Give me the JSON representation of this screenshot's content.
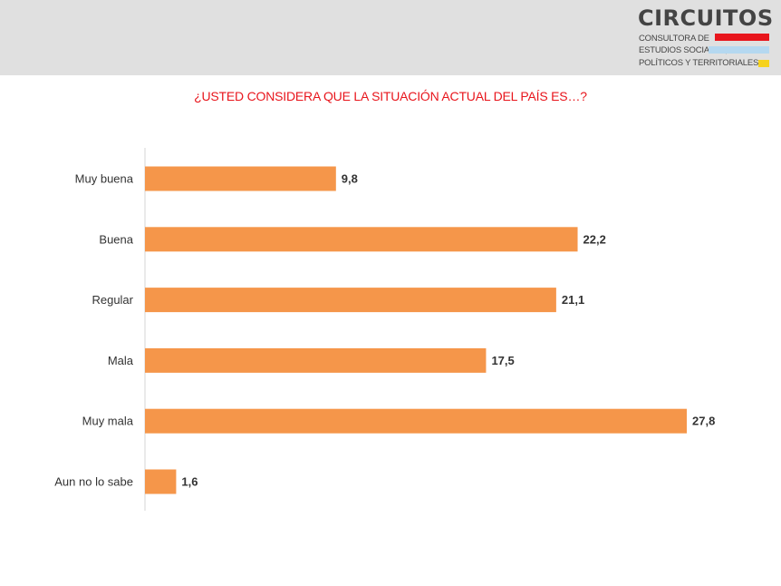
{
  "logo": {
    "name": "CIRCUITOS",
    "line1": "CONSULTORA DE",
    "line2": "ESTUDIOS SOCIALES,",
    "line3": "POLÍTICOS Y TERRITORIALES"
  },
  "colors": {
    "bar": "#f5964a",
    "title": "#e8151c",
    "header_band": "#e0e0e0"
  },
  "chart_data": {
    "type": "bar",
    "orientation": "horizontal",
    "title": "¿USTED CONSIDERA QUE LA SITUACIÓN ACTUAL DEL PAÍS ES…?",
    "categories": [
      "Muy buena",
      "Buena",
      "Regular",
      "Mala",
      "Muy mala",
      "Aun no lo sabe"
    ],
    "values": [
      9.8,
      22.2,
      21.1,
      17.5,
      27.8,
      1.6
    ],
    "value_labels": [
      "9,8",
      "22,2",
      "21,1",
      "17,5",
      "27,8",
      "1,6"
    ],
    "xlim": [
      0,
      27.8
    ],
    "grid": false,
    "legend": "none"
  }
}
